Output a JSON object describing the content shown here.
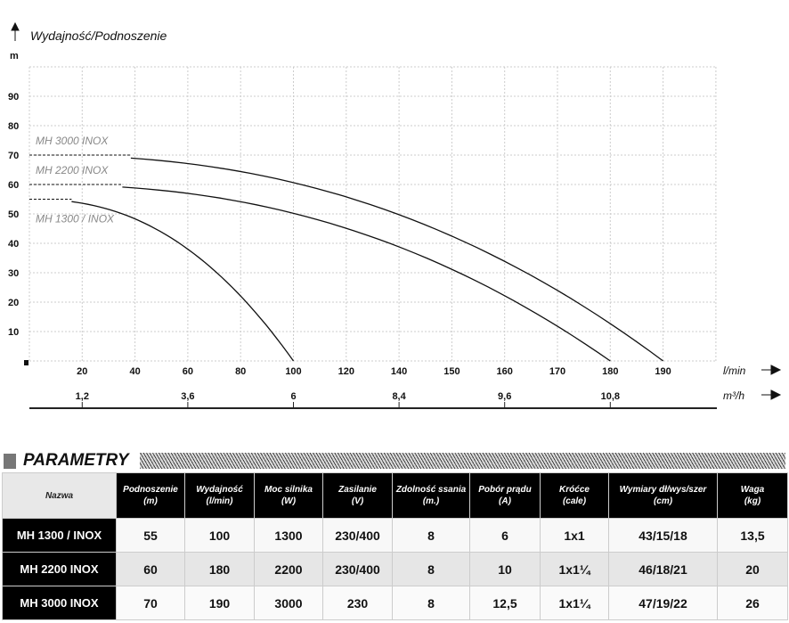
{
  "chart_data": {
    "type": "line",
    "title": "Wydajność/Podnoszenie",
    "ylabel": "m",
    "xlabel": "l/min",
    "x2label": "m³/h",
    "ylim": [
      0,
      100
    ],
    "yticks": [
      10,
      20,
      30,
      40,
      50,
      60,
      70,
      80,
      90
    ],
    "xticks": [
      20,
      40,
      60,
      80,
      100,
      120,
      140,
      150,
      160,
      170,
      180,
      190
    ],
    "x2ticks": [
      {
        "label": "1,2",
        "at": 20
      },
      {
        "label": "3,6",
        "at": 60
      },
      {
        "label": "6",
        "at": 100
      },
      {
        "label": "8,4",
        "at": 140
      },
      {
        "label": "9,6",
        "at": 160
      },
      {
        "label": "10,8",
        "at": 180
      }
    ],
    "grid": true,
    "series": [
      {
        "name": "MH 3000 INOX",
        "head_max": 70,
        "flow_max": 190
      },
      {
        "name": "MH 2200 INOX",
        "head_max": 60,
        "flow_max": 180
      },
      {
        "name": "MH 1300  / INOX",
        "head_max": 55,
        "flow_max": 100
      }
    ]
  },
  "section_title": "PARAMETRY",
  "table": {
    "headers": [
      [
        "Nazwa",
        ""
      ],
      [
        "Podnoszenie",
        "(m)"
      ],
      [
        "Wydajność",
        "(l/min)"
      ],
      [
        "Moc silnika",
        "(W)"
      ],
      [
        "Zasilanie",
        "(V)"
      ],
      [
        "Zdolność ssania",
        "(m.)"
      ],
      [
        "Pobór prądu",
        "(A)"
      ],
      [
        "Króćce",
        "(cale)"
      ],
      [
        "Wymiary dł/wys/szer",
        "(cm)"
      ],
      [
        "Waga",
        "(kg)"
      ]
    ],
    "rows": [
      [
        "MH 1300 / INOX",
        "55",
        "100",
        "1300",
        "230/400",
        "8",
        "6",
        "1x1",
        "43/15/18",
        "13,5"
      ],
      [
        "MH 2200 INOX",
        "60",
        "180",
        "2200",
        "230/400",
        "8",
        "10",
        "1x1¼",
        "46/18/21",
        "20"
      ],
      [
        "MH 3000 INOX",
        "70",
        "190",
        "3000",
        "230",
        "8",
        "12,5",
        "1x1¼",
        "47/19/22",
        "26"
      ]
    ]
  }
}
